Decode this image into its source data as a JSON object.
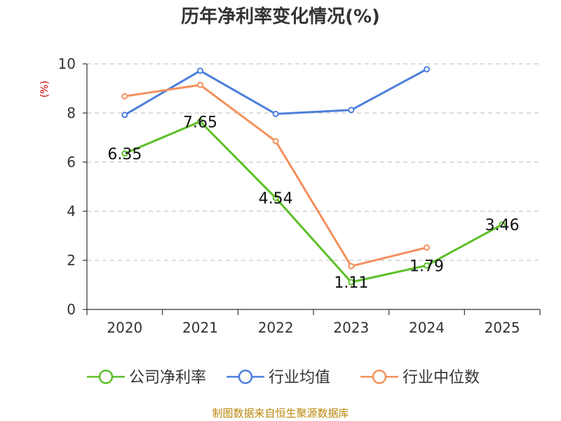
{
  "chart_data": {
    "type": "line",
    "title": "历年净利率变化情况(%)",
    "ylabel": "(%)",
    "xlabel": "",
    "categories": [
      "2020",
      "2021",
      "2022",
      "2023",
      "2024",
      "2025"
    ],
    "ylim": [
      0,
      10
    ],
    "yticks": [
      0,
      2,
      4,
      6,
      8,
      10
    ],
    "grid": true,
    "legend_position": "bottom",
    "series": [
      {
        "name": "公司净利率",
        "color": "#5cbf27",
        "values": [
          6.35,
          7.65,
          4.54,
          1.11,
          1.79,
          3.46
        ],
        "labels": [
          "6.35",
          "7.65",
          "4.54",
          "1.11",
          "1.79",
          "3.46"
        ]
      },
      {
        "name": "行业均值",
        "color": "#4c7fdc",
        "values": [
          7.92,
          9.72,
          7.96,
          8.12,
          9.78,
          null
        ]
      },
      {
        "name": "行业中位数",
        "color": "#f4905b",
        "values": [
          8.68,
          9.14,
          6.85,
          1.76,
          2.52,
          null
        ]
      }
    ]
  },
  "colors": {
    "unit_label": "#cc0000",
    "source_text": "#b8860b",
    "axis": "#333333",
    "grid": "#bbbbbb"
  },
  "source": "制图数据来自恒生聚源数据库"
}
